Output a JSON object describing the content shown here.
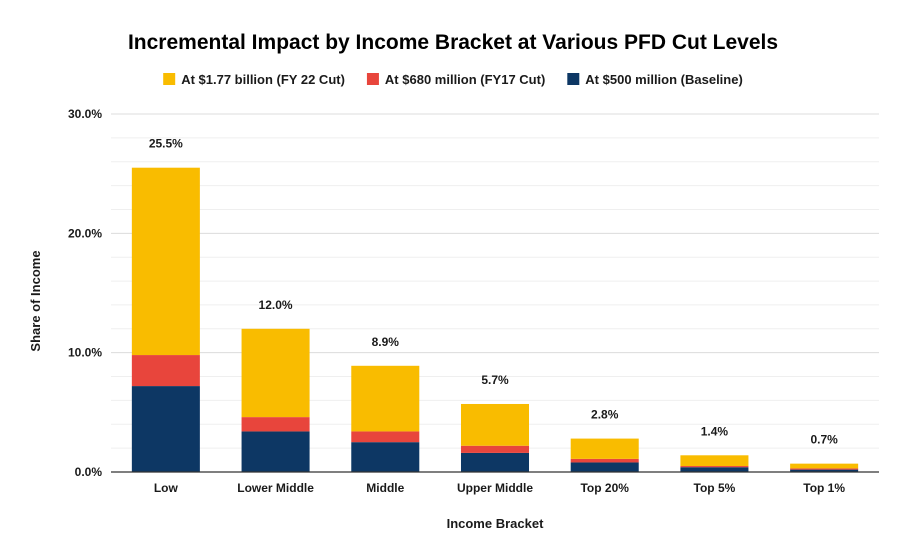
{
  "chart_data": {
    "type": "bar",
    "stacked": true,
    "title": "Incremental Impact by Income Bracket at Various PFD Cut Levels",
    "xlabel": "Income Bracket",
    "ylabel": "Share of Income",
    "ylim": [
      0,
      30
    ],
    "y_ticks": [
      "0.0%",
      "10.0%",
      "20.0%",
      "30.0%"
    ],
    "y_tick_values": [
      0,
      10,
      20,
      30
    ],
    "grid": true,
    "legend_position": "top",
    "categories": [
      "Low",
      "Lower Middle",
      "Middle",
      "Upper Middle",
      "Top 20%",
      "Top 5%",
      "Top 1%"
    ],
    "series": [
      {
        "name": "At $500 million (Baseline)",
        "color": "#0d3764",
        "values": [
          7.2,
          3.4,
          2.5,
          1.6,
          0.8,
          0.4,
          0.2
        ]
      },
      {
        "name": "At $680 million (FY17 Cut)",
        "color": "#e8453c",
        "values": [
          2.6,
          1.2,
          0.9,
          0.6,
          0.3,
          0.1,
          0.1
        ]
      },
      {
        "name": "At $1.77 billion (FY 22 Cut)",
        "color": "#f9bc00",
        "values": [
          15.7,
          7.4,
          5.5,
          3.5,
          1.7,
          0.9,
          0.4
        ]
      }
    ],
    "legend_order": [
      2,
      1,
      0
    ],
    "totals": [
      25.5,
      12.0,
      8.9,
      5.7,
      2.8,
      1.4,
      0.7
    ],
    "total_labels": [
      "25.5%",
      "12.0%",
      "8.9%",
      "5.7%",
      "2.8%",
      "1.4%",
      "0.7%"
    ]
  }
}
